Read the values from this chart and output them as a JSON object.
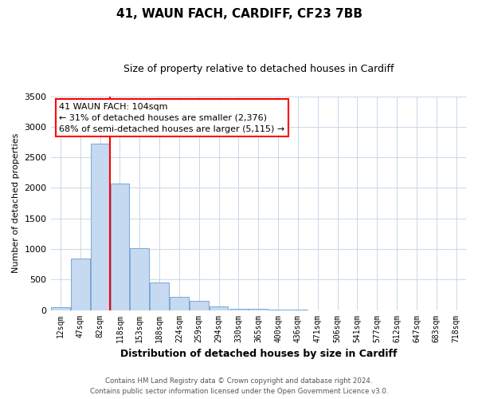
{
  "title": "41, WAUN FACH, CARDIFF, CF23 7BB",
  "subtitle": "Size of property relative to detached houses in Cardiff",
  "xlabel": "Distribution of detached houses by size in Cardiff",
  "ylabel": "Number of detached properties",
  "bar_labels": [
    "12sqm",
    "47sqm",
    "82sqm",
    "118sqm",
    "153sqm",
    "188sqm",
    "224sqm",
    "259sqm",
    "294sqm",
    "330sqm",
    "365sqm",
    "400sqm",
    "436sqm",
    "471sqm",
    "506sqm",
    "541sqm",
    "577sqm",
    "612sqm",
    "647sqm",
    "683sqm",
    "718sqm"
  ],
  "bar_values": [
    50,
    840,
    2730,
    2070,
    1010,
    455,
    210,
    145,
    55,
    25,
    15,
    5,
    2,
    0,
    0,
    0,
    0,
    0,
    0,
    0,
    0
  ],
  "bar_color": "#c5d9f1",
  "bar_edge_color": "#7aa6d4",
  "ylim": [
    0,
    3500
  ],
  "yticks": [
    0,
    500,
    1000,
    1500,
    2000,
    2500,
    3000,
    3500
  ],
  "property_line_x": 2.5,
  "property_line_color": "red",
  "annotation_title": "41 WAUN FACH: 104sqm",
  "annotation_line1": "← 31% of detached houses are smaller (2,376)",
  "annotation_line2": "68% of semi-detached houses are larger (5,115) →",
  "annotation_box_color": "red",
  "footer_line1": "Contains HM Land Registry data © Crown copyright and database right 2024.",
  "footer_line2": "Contains public sector information licensed under the Open Government Licence v3.0.",
  "bg_color": "#ffffff",
  "grid_color": "#c8d8e8"
}
